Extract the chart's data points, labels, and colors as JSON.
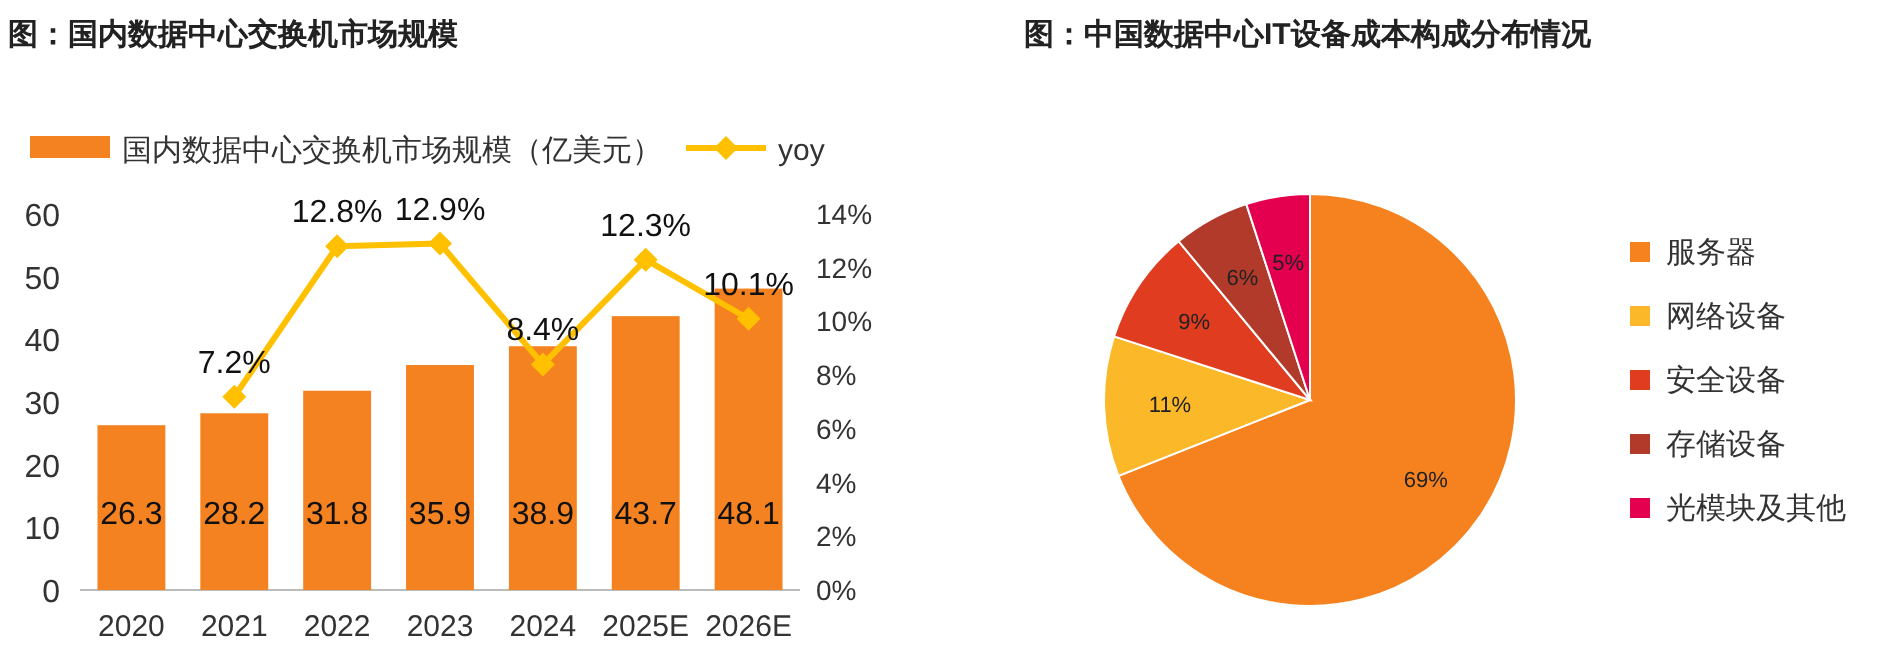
{
  "chart_data": [
    {
      "type": "bar",
      "title": "图：国内数据中心交换机市场规模",
      "categories": [
        "2020",
        "2021",
        "2022",
        "2023",
        "2024",
        "2025E",
        "2026E"
      ],
      "series": [
        {
          "name": "国内数据中心交换机市场规模（亿美元）",
          "type": "bar",
          "color": "#f58220",
          "values": [
            26.3,
            28.2,
            31.8,
            35.9,
            38.9,
            43.7,
            48.1
          ]
        },
        {
          "name": "yoy",
          "type": "line",
          "axis": "y2",
          "color": "#ffc000",
          "marker": "diamond",
          "values": [
            null,
            7.2,
            12.8,
            12.9,
            8.4,
            12.3,
            10.1
          ],
          "value_labels": [
            null,
            "7.2%",
            "12.8%",
            "12.9%",
            "8.4%",
            "12.3%",
            "10.1%"
          ]
        }
      ],
      "ylim": [
        0,
        60
      ],
      "yticks": [
        0,
        10,
        20,
        30,
        40,
        50,
        60
      ],
      "y2lim": [
        0,
        14
      ],
      "y2ticks": [
        {
          "value": 0,
          "label": "0%"
        },
        {
          "value": 2,
          "label": "2%"
        },
        {
          "value": 4,
          "label": "4%"
        },
        {
          "value": 6,
          "label": "6%"
        },
        {
          "value": 8,
          "label": "8%"
        },
        {
          "value": 10,
          "label": "10%"
        },
        {
          "value": 12,
          "label": "12%"
        },
        {
          "value": 14,
          "label": "14%"
        }
      ],
      "data_labels": true,
      "legend": "top",
      "grid": false
    },
    {
      "type": "pie",
      "title": "图：中国数据中心IT设备成本构成分布情况",
      "categories": [
        "服务器",
        "网络设备",
        "安全设备",
        "存储设备",
        "光模块及其他"
      ],
      "values": [
        69,
        11,
        9,
        6,
        5
      ],
      "colors": [
        "#f5821f",
        "#fbb829",
        "#e03c1f",
        "#b23a2a",
        "#e5004f"
      ],
      "value_labels": [
        "69%",
        "11%",
        "9%",
        "6%",
        "5%"
      ],
      "legend": "right"
    }
  ]
}
